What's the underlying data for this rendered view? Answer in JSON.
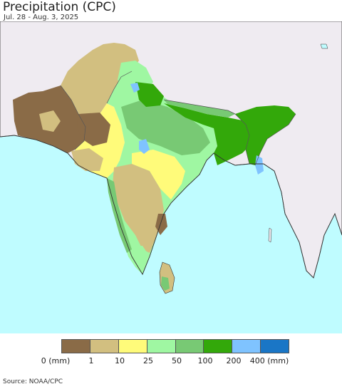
{
  "title": "Precipitation (CPC)",
  "subtitle": "Jul. 28 - Aug. 3, 2025",
  "source": "Source: NOAA/CPC",
  "colors": {
    "ocean": "#bffcff",
    "land_out": "#efebf1",
    "border": "#333333"
  },
  "legend": {
    "swatches": [
      "#8a6b47",
      "#d2bf80",
      "#fffb7a",
      "#9ff7a2",
      "#78c974",
      "#33a80a",
      "#7fc3ff",
      "#1a76c6"
    ],
    "labels": [
      "0 (mm)",
      "1",
      "10",
      "25",
      "50",
      "100",
      "200",
      "400 (mm)"
    ]
  }
}
